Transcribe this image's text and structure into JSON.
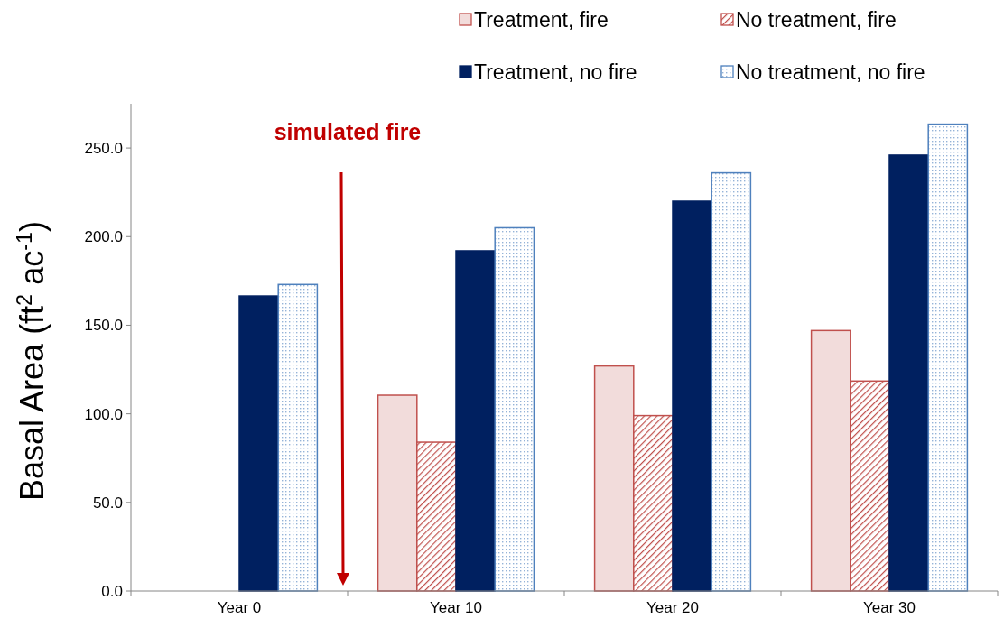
{
  "chart_data": {
    "type": "bar",
    "ylabel": "Basal Area (ft$^{2}$ ac$^{-1}$)",
    "categories": [
      "Year 0",
      "Year 10",
      "Year 20",
      "Year 30"
    ],
    "series": [
      {
        "name": "Treatment, fire",
        "color": "#f2dcdb",
        "values": [
          null,
          110.5,
          127,
          147
        ]
      },
      {
        "name": "No treatment, fire",
        "color": "#c0504d",
        "values": [
          null,
          84,
          99,
          118.5
        ]
      },
      {
        "name": "Treatment, no fire",
        "color": "#002060",
        "values": [
          166.5,
          192,
          220,
          246
        ]
      },
      {
        "name": "No treatment, no fire",
        "color": "#4f81bd",
        "values": [
          173,
          205,
          236,
          263.5
        ]
      }
    ],
    "ylim": [
      0,
      275
    ],
    "yticks": [
      {
        "value": 0,
        "label": "0.0"
      },
      {
        "value": 50,
        "label": "50.0"
      },
      {
        "value": 100,
        "label": "100.0"
      },
      {
        "value": 150,
        "label": "150.0"
      },
      {
        "value": 200,
        "label": "200.0"
      },
      {
        "value": 250,
        "label": "250.0"
      }
    ],
    "grid": false,
    "legend": "top right",
    "annotations": [
      "simulated fire"
    ]
  }
}
